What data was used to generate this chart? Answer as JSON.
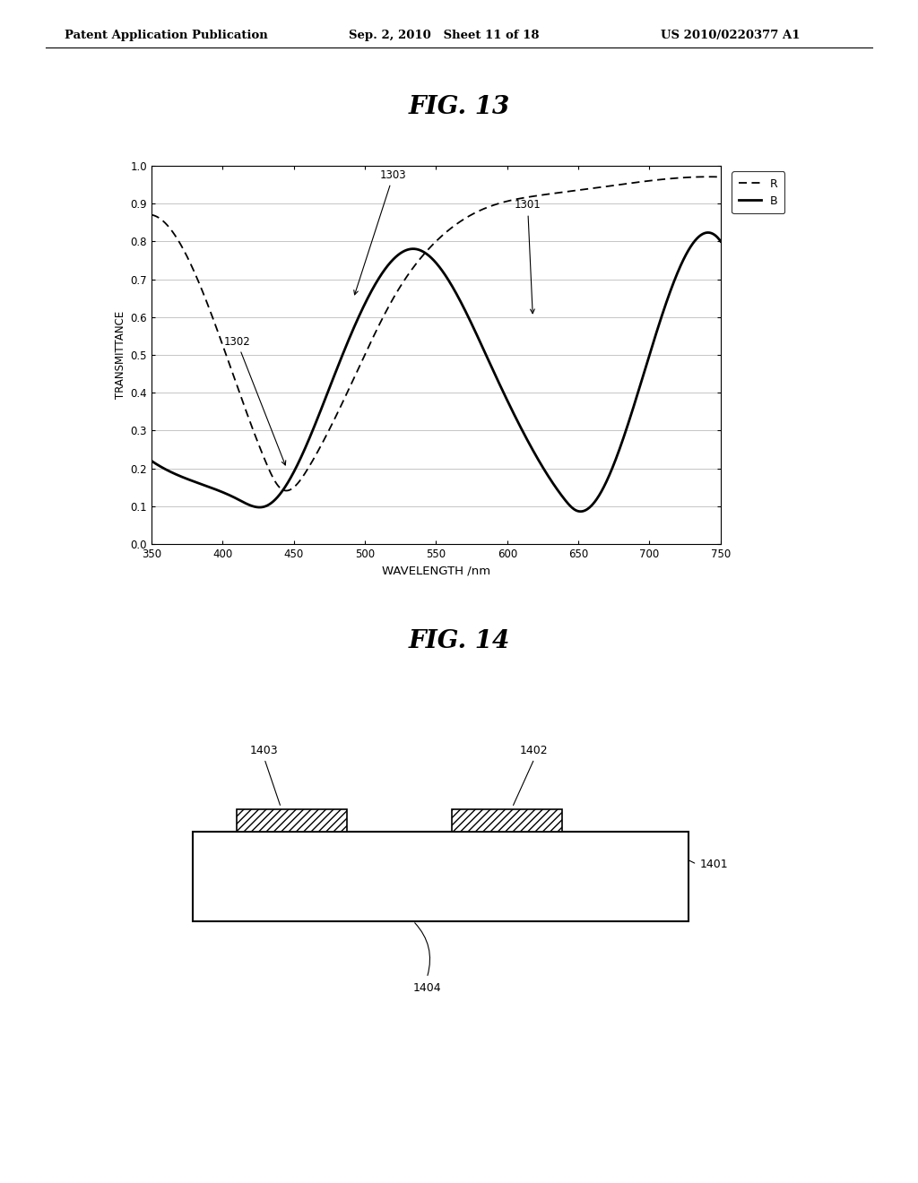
{
  "header_left": "Patent Application Publication",
  "header_mid": "Sep. 2, 2010   Sheet 11 of 18",
  "header_right": "US 2010/0220377 A1",
  "fig13_title": "FIG. 13",
  "fig14_title": "FIG. 14",
  "xlabel": "WAVELENGTH /nm",
  "ylabel": "TRANSMITTANCE",
  "xmin": 350,
  "xmax": 750,
  "ymin": 0,
  "ymax": 1.0,
  "xticks": [
    350,
    400,
    450,
    500,
    550,
    600,
    650,
    700,
    750
  ],
  "yticks": [
    0,
    0.1,
    0.2,
    0.3,
    0.4,
    0.5,
    0.6,
    0.7,
    0.8,
    0.9,
    1
  ],
  "legend_R": "R",
  "legend_B": "B",
  "label_1301": "1301",
  "label_1302": "1302",
  "label_1303": "1303",
  "label_1401": "1401",
  "label_1402": "1402",
  "label_1403": "1403",
  "label_1404": "1404",
  "bg_color": "#ffffff",
  "line_color": "#000000",
  "grid_color": "#bbbbbb"
}
